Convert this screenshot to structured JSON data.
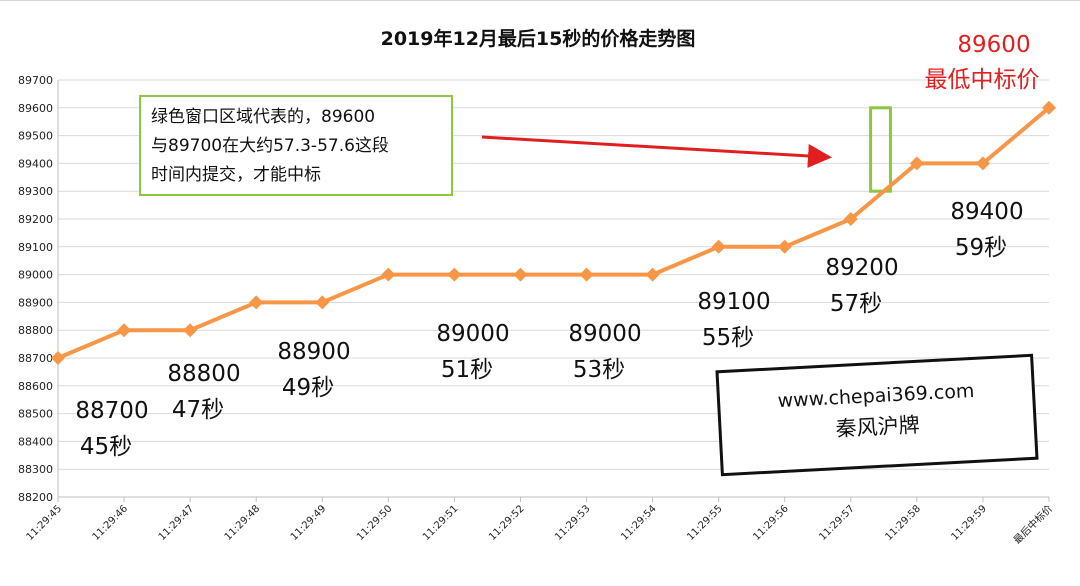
{
  "chart_data": {
    "type": "line",
    "title": "2019年12月最后15秒的价格走势图",
    "categories": [
      "11:29:45",
      "11:29:46",
      "11:29:47",
      "11:29:48",
      "11:29:49",
      "11:29:50",
      "11:29:51",
      "11:29:52",
      "11:29:53",
      "11:29:54",
      "11:29:55",
      "11:29:56",
      "11:29:57",
      "11:29:58",
      "11:29:59",
      "最后中标价"
    ],
    "values": [
      88700,
      88800,
      88800,
      88900,
      88900,
      89000,
      89000,
      89000,
      89000,
      89000,
      89100,
      89100,
      89200,
      89400,
      89400,
      89600
    ],
    "ylim": [
      88200,
      89700
    ],
    "yticks": [
      88200,
      88300,
      88400,
      88500,
      88600,
      88700,
      88800,
      88900,
      89000,
      89100,
      89200,
      89300,
      89400,
      89500,
      89600,
      89700
    ],
    "grid": true,
    "line_color": "#f79646",
    "marker_color": "#f79646",
    "annotations": [
      {
        "price": "88700",
        "time": "45秒"
      },
      {
        "price": "88800",
        "time": "47秒"
      },
      {
        "price": "88900",
        "time": "49秒"
      },
      {
        "price": "89000",
        "time": "51秒"
      },
      {
        "price": "89000",
        "time": "53秒"
      },
      {
        "price": "89100",
        "time": "55秒"
      },
      {
        "price": "89200",
        "time": "57秒"
      },
      {
        "price": "89400",
        "time": "59秒"
      }
    ],
    "final_price": "89600",
    "final_label": "最低中标价",
    "note": "绿色窗口区域代表的，89600\n与89700在大约57.3-57.6这段\n时间内提交，才能中标",
    "highlight": {
      "x_from": 12.3,
      "x_to": 12.6,
      "y_from": 89300,
      "y_to": 89600,
      "color": "#8dc63f"
    },
    "arrow_color": "#e02020"
  },
  "watermark": {
    "site": "www.chepai369.com",
    "name": "秦风沪牌"
  }
}
